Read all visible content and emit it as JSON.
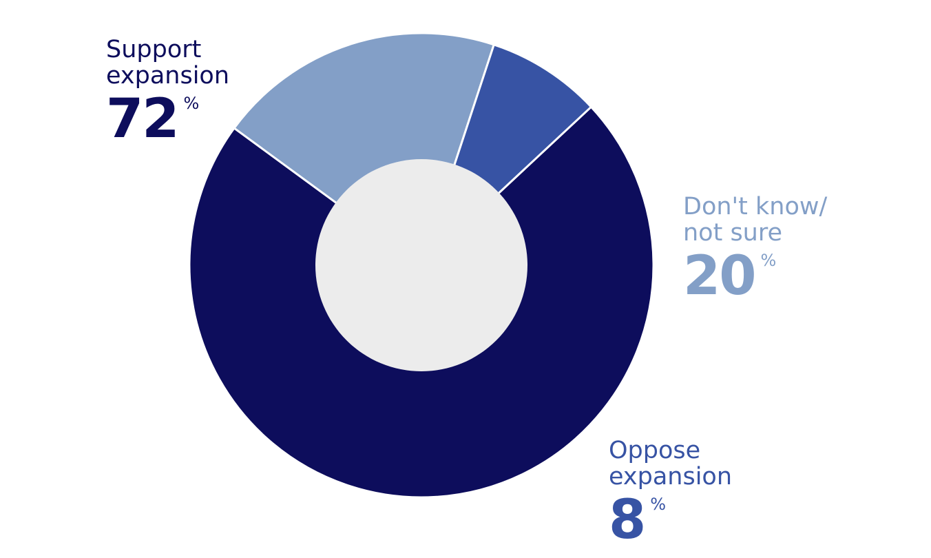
{
  "chart_data": {
    "type": "pie",
    "donut": true,
    "series": [
      {
        "name": "Support expansion",
        "line1": "Support",
        "line2": "expansion",
        "value": 72,
        "unit": "%",
        "color": "#0d0d5c"
      },
      {
        "name": "Don't know/ not sure",
        "line1": "Don't know/",
        "line2": "not sure",
        "value": 20,
        "unit": "%",
        "color": "#839fc7"
      },
      {
        "name": "Oppose expansion",
        "line1": "Oppose",
        "line2": "expansion",
        "value": 8,
        "unit": "%",
        "color": "#3753a4"
      }
    ],
    "hole_color": "#ececec",
    "separator_color": "#ffffff"
  }
}
